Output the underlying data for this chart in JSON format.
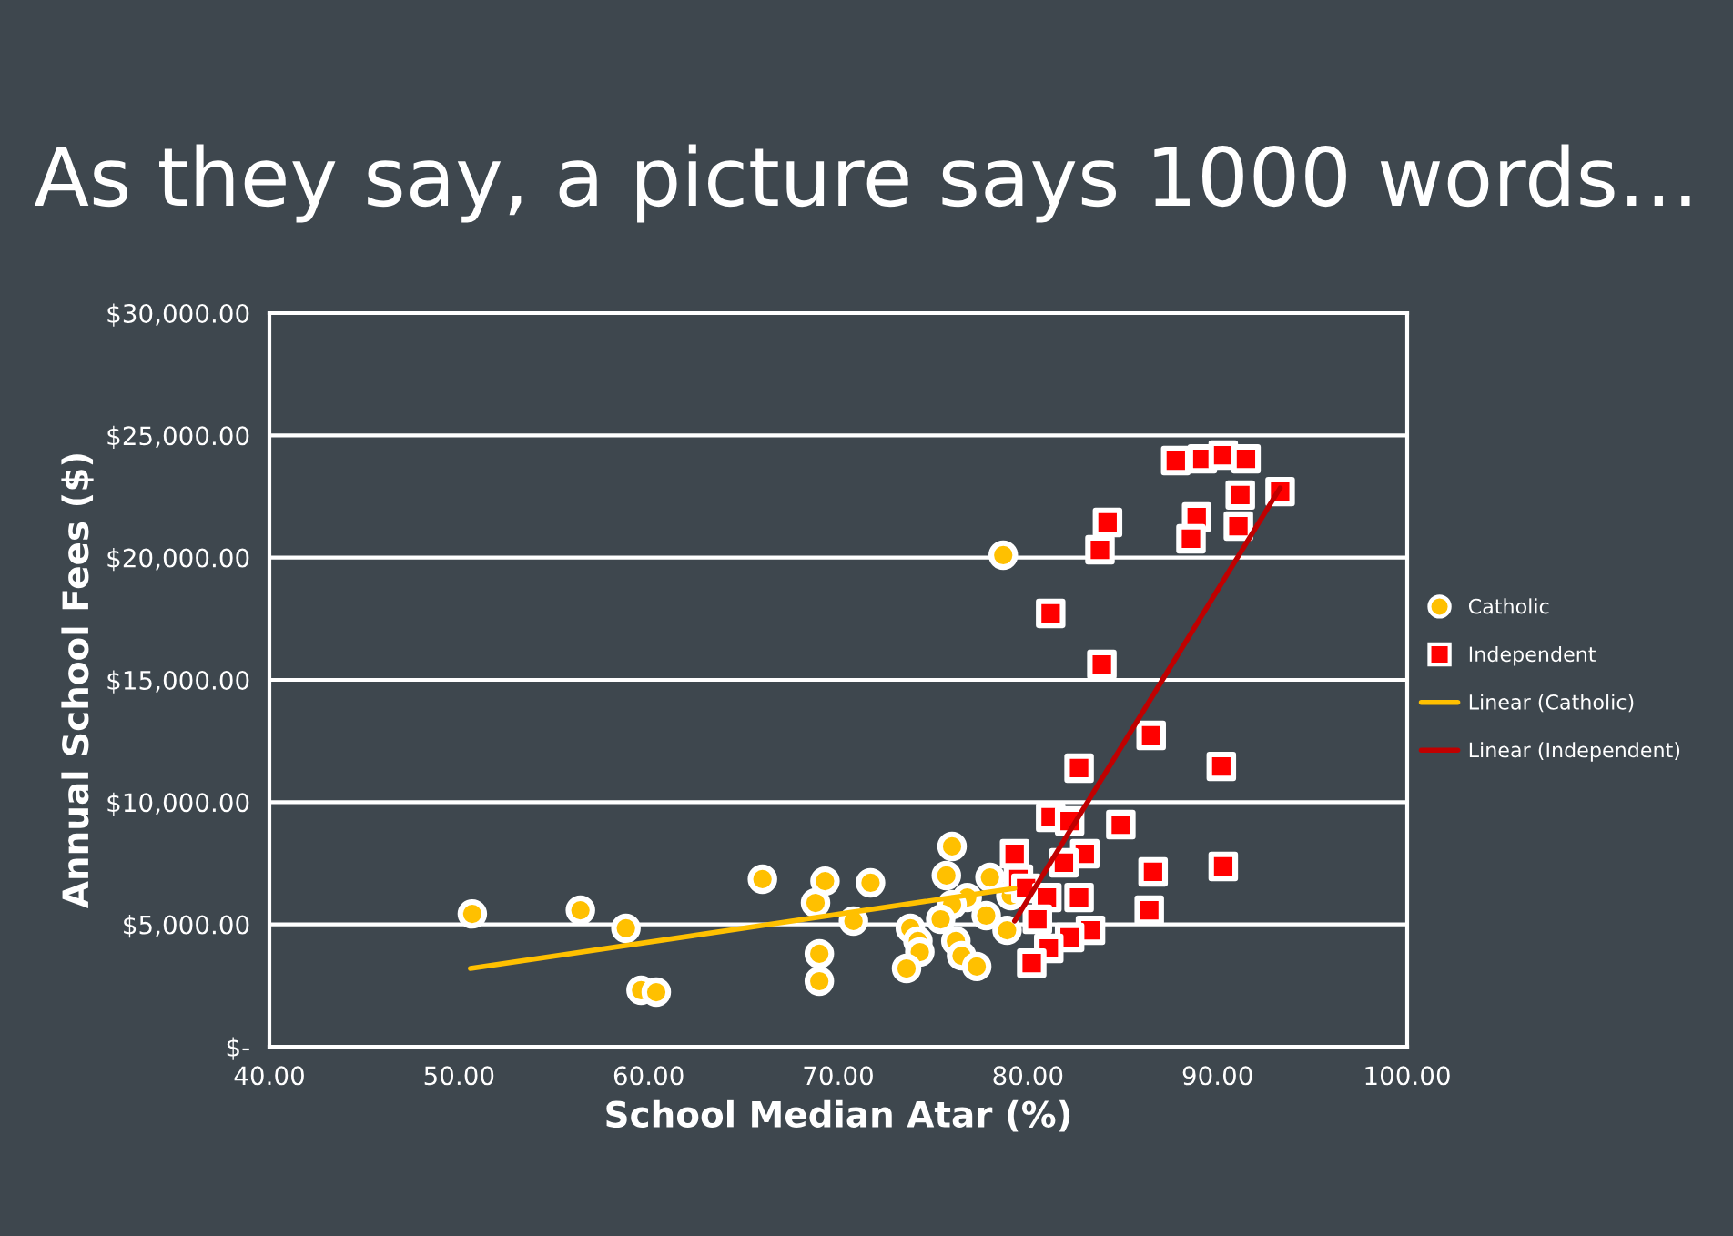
{
  "chart_data": {
    "type": "scatter",
    "title": "As they say, a picture says 1000 words…",
    "xlabel": "School Median Atar (%)",
    "ylabel": "Annual School Fees ($)",
    "xlim": [
      40,
      100
    ],
    "ylim": [
      0,
      30000
    ],
    "xticks": [
      {
        "value": 40,
        "label": "40.00"
      },
      {
        "value": 50,
        "label": "50.00"
      },
      {
        "value": 60,
        "label": "60.00"
      },
      {
        "value": 70,
        "label": "70.00"
      },
      {
        "value": 80,
        "label": "80.00"
      },
      {
        "value": 90,
        "label": "90.00"
      },
      {
        "value": 100,
        "label": "100.00"
      }
    ],
    "yticks": [
      {
        "value": 0,
        "label": "$-"
      },
      {
        "value": 5000,
        "label": "$5,000.00"
      },
      {
        "value": 10000,
        "label": "$10,000.00"
      },
      {
        "value": 15000,
        "label": "$15,000.00"
      },
      {
        "value": 20000,
        "label": "$20,000.00"
      },
      {
        "value": 25000,
        "label": "$25,000.00"
      },
      {
        "value": 30000,
        "label": "$30,000.00"
      }
    ],
    "grid": "y",
    "legend": "right",
    "series": [
      {
        "name": "Catholic",
        "marker": "circle",
        "color": "#ffc000",
        "x": [
          50.7,
          56.4,
          58.8,
          59.6,
          60.4,
          66.0,
          68.8,
          69.3,
          71.7,
          70.8,
          69.0,
          69.0,
          76.0,
          75.7,
          78.0,
          76.8,
          76.0,
          75.4,
          73.8,
          74.2,
          74.3,
          73.6,
          76.2,
          76.5,
          77.3,
          77.8,
          78.9,
          79.1,
          78.7
        ],
        "values": [
          5430,
          5580,
          4840,
          2310,
          2230,
          6850,
          5880,
          6770,
          6700,
          5140,
          3800,
          2680,
          8190,
          7000,
          6920,
          6100,
          5810,
          5210,
          4840,
          4320,
          3870,
          3200,
          4320,
          3720,
          3280,
          5360,
          4760,
          6180,
          20100
        ]
      },
      {
        "name": "Independent",
        "marker": "square",
        "color": "#ff0000",
        "x": [
          83.9,
          86.5,
          82.7,
          90.2,
          81.2,
          82.2,
          84.9,
          79.3,
          83.0,
          81.9,
          86.6,
          90.3,
          79.5,
          79.9,
          81.0,
          82.7,
          86.4,
          80.5,
          83.3,
          82.2,
          81.1,
          80.2,
          84.2,
          83.8,
          81.2,
          87.8,
          89.2,
          90.3,
          91.5,
          91.2,
          88.9,
          88.6,
          91.1,
          93.3
        ],
        "values": [
          15630,
          12730,
          11390,
          11460,
          9380,
          9230,
          9080,
          7890,
          7890,
          7520,
          7150,
          7370,
          6850,
          6480,
          6100,
          6100,
          5580,
          5210,
          4760,
          4470,
          4020,
          3420,
          21440,
          20320,
          17720,
          23970,
          24040,
          24190,
          24040,
          22560,
          21660,
          20770,
          21290,
          22700
        ]
      },
      {
        "name": "Linear (Catholic)",
        "type": "line",
        "color": "#ffc000",
        "x": [
          50.6,
          79.3
        ],
        "values": [
          3200,
          6480
        ]
      },
      {
        "name": "Linear (Independent)",
        "type": "line",
        "color": "#c00000",
        "x": [
          79.3,
          93.3
        ],
        "values": [
          5140,
          22850
        ]
      }
    ]
  }
}
